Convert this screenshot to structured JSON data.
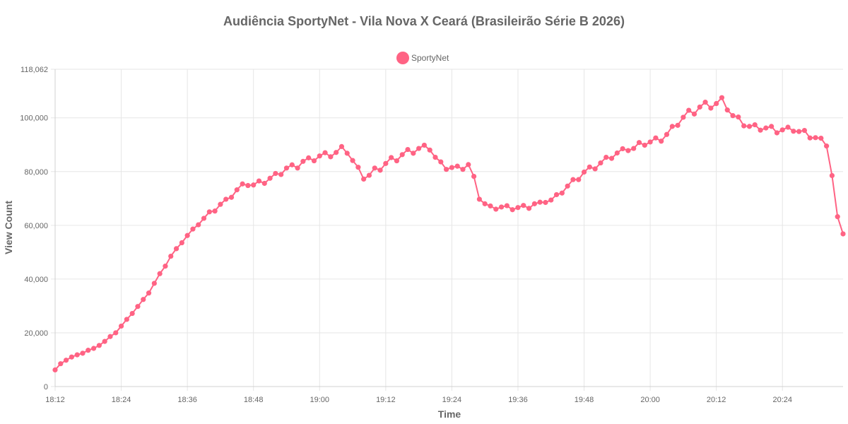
{
  "chart_data": {
    "type": "line",
    "title": "Audiência SportyNet - Vila Nova X Ceará (Brasileirão Série B 2026)",
    "xlabel": "Time",
    "ylabel": "View Count",
    "ylim": [
      0,
      118062
    ],
    "yticks": [
      "0",
      "20,000",
      "40,000",
      "60,000",
      "80,000",
      "100,000",
      "118,062"
    ],
    "yticks_values": [
      0,
      20000,
      40000,
      60000,
      80000,
      100000,
      118062
    ],
    "xticks": [
      "18:12",
      "18:24",
      "18:36",
      "18:48",
      "19:00",
      "19:12",
      "19:24",
      "19:36",
      "19:48",
      "20:00",
      "20:12",
      "20:24"
    ],
    "x_start": "18:12",
    "x_step_minutes": 1,
    "grid": true,
    "legend_position": "top",
    "series": [
      {
        "name": "SportyNet",
        "color": "#ff6384",
        "values": [
          6200,
          8500,
          9800,
          11000,
          11800,
          12400,
          13500,
          14200,
          15300,
          16800,
          18600,
          20000,
          22500,
          25000,
          27200,
          29800,
          32400,
          34800,
          38400,
          42000,
          44800,
          48500,
          51300,
          53500,
          56200,
          58600,
          60200,
          62600,
          65000,
          65300,
          67800,
          69700,
          70400,
          73200,
          75400,
          74800,
          75000,
          76500,
          75600,
          77500,
          79300,
          78900,
          81300,
          82500,
          81300,
          83800,
          85100,
          84000,
          85800,
          87000,
          85500,
          87100,
          89300,
          86800,
          84100,
          81600,
          77200,
          78600,
          81300,
          80500,
          83000,
          85200,
          84000,
          86300,
          88200,
          86800,
          88600,
          89800,
          88000,
          85300,
          83600,
          80800,
          81500,
          82000,
          80800,
          82600,
          78200,
          69700,
          68000,
          67200,
          66000,
          66800,
          67300,
          65800,
          66600,
          67400,
          66300,
          68000,
          68600,
          68500,
          69400,
          71400,
          72000,
          74600,
          77000,
          77000,
          79800,
          81700,
          81000,
          83200,
          85300,
          84900,
          86900,
          88500,
          87800,
          88600,
          90800,
          89800,
          91000,
          92500,
          91300,
          93800,
          96800,
          97200,
          100200,
          102800,
          101400,
          104000,
          105800,
          103600,
          105300,
          107500,
          102900,
          100800,
          100300,
          97000,
          96800,
          97400,
          95400,
          96200,
          96800,
          94400,
          95500,
          96500,
          95000,
          94900,
          95300,
          92500,
          92600,
          92400,
          89500,
          78500,
          63200,
          56800
        ]
      }
    ]
  }
}
